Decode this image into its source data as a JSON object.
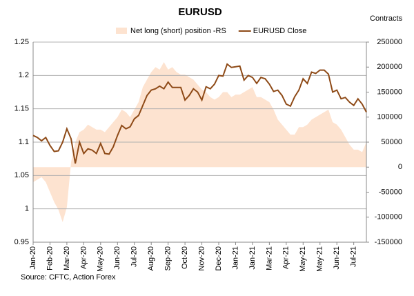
{
  "chart_data": {
    "type": "line",
    "title": "EURUSD",
    "y2_axis_label": "Contracts",
    "source": "Source: CFTC, Action Forex",
    "categories": [
      "Jan-20",
      null,
      null,
      null,
      "Feb-20",
      null,
      null,
      null,
      "Mar-20",
      null,
      null,
      null,
      "Apr-20",
      null,
      null,
      null,
      "May-20",
      null,
      null,
      null,
      "Jun-20",
      null,
      null,
      null,
      "Jul-20",
      null,
      null,
      null,
      "Aug-20",
      null,
      null,
      null,
      "Sep-20",
      null,
      null,
      null,
      "Oct-20",
      null,
      null,
      null,
      "Nov-20",
      null,
      null,
      null,
      "Dec-20",
      null,
      null,
      null,
      "Jan-21",
      null,
      null,
      null,
      "Jan-21",
      null,
      null,
      null,
      "Mar-21",
      null,
      null,
      null,
      "Apr-21",
      null,
      null,
      null,
      "May-21",
      null,
      null,
      null,
      "May-21",
      null,
      null,
      null,
      "Jun-21",
      null,
      null,
      null,
      "Jul-21",
      null,
      null,
      null
    ],
    "series": [
      {
        "name": "Net long (short) position -RS",
        "type": "area",
        "axis": "y2",
        "color": "#fde3d0",
        "values": [
          -30000,
          -25000,
          -20000,
          -30000,
          -50000,
          -70000,
          -85000,
          -110000,
          -80000,
          10000,
          50000,
          70000,
          75000,
          85000,
          80000,
          75000,
          75000,
          70000,
          80000,
          90000,
          100000,
          115000,
          110000,
          100000,
          115000,
          130000,
          160000,
          175000,
          190000,
          200000,
          195000,
          210000,
          195000,
          200000,
          190000,
          185000,
          185000,
          180000,
          175000,
          165000,
          155000,
          150000,
          140000,
          135000,
          140000,
          150000,
          150000,
          140000,
          145000,
          145000,
          150000,
          155000,
          160000,
          140000,
          140000,
          135000,
          130000,
          115000,
          95000,
          85000,
          75000,
          65000,
          65000,
          80000,
          80000,
          85000,
          95000,
          100000,
          105000,
          110000,
          115000,
          90000,
          85000,
          75000,
          60000,
          45000,
          35000,
          35000,
          30000,
          50000
        ]
      },
      {
        "name": "EURUSD Close",
        "type": "line",
        "color": "#8e4a17",
        "values": [
          1.11,
          1.107,
          1.102,
          1.107,
          1.095,
          1.086,
          1.087,
          1.1,
          1.12,
          1.105,
          1.068,
          1.1,
          1.083,
          1.09,
          1.088,
          1.083,
          1.098,
          1.083,
          1.082,
          1.093,
          1.11,
          1.125,
          1.12,
          1.123,
          1.135,
          1.14,
          1.155,
          1.17,
          1.178,
          1.18,
          1.184,
          1.18,
          1.19,
          1.182,
          1.182,
          1.182,
          1.163,
          1.17,
          1.18,
          1.175,
          1.163,
          1.183,
          1.18,
          1.187,
          1.2,
          1.199,
          1.217,
          1.212,
          1.213,
          1.214,
          1.193,
          1.2,
          1.197,
          1.188,
          1.197,
          1.195,
          1.187,
          1.176,
          1.178,
          1.17,
          1.157,
          1.154,
          1.168,
          1.178,
          1.195,
          1.188,
          1.205,
          1.203,
          1.208,
          1.208,
          1.202,
          1.175,
          1.178,
          1.165,
          1.167,
          1.16,
          1.155,
          1.165,
          1.157,
          1.145
        ]
      }
    ],
    "ylim": [
      0.95,
      1.25
    ],
    "yticks": [
      0.95,
      1,
      1.05,
      1.1,
      1.15,
      1.2,
      1.25
    ],
    "y2lim": [
      -150000,
      250000
    ],
    "y2ticks": [
      -150000,
      -100000,
      -50000,
      0,
      50000,
      100000,
      150000,
      200000,
      250000
    ],
    "grid": true
  }
}
